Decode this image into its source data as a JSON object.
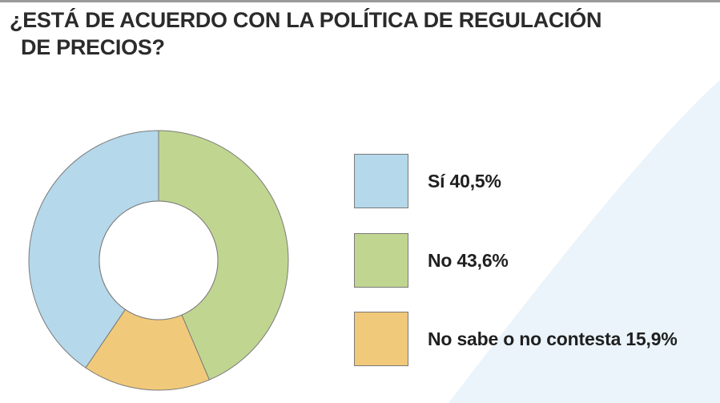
{
  "title_lines": [
    "¿ESTÁ DE ACUERDO CON LA POLÍTICA DE REGULACIÓN",
    "DE PRECIOS?"
  ],
  "colors": {
    "si": "#b5d8ea",
    "no": "#c0d690",
    "ns_nc": "#f0c97a",
    "outline": "#7a7a7a",
    "background_accent": "#eaf4fa"
  },
  "chart_data": {
    "type": "pie",
    "variant": "donut",
    "title": "¿ESTÁ DE ACUERDO CON LA POLÍTICA DE REGULACIÓN DE PRECIOS?",
    "categories": [
      "Sí",
      "No",
      "No sabe o no contesta"
    ],
    "values": [
      40.5,
      43.6,
      15.9
    ],
    "unit": "%",
    "legend_labels": [
      "Sí  40,5%",
      "No 43,6%",
      "No sabe o no contesta 15,9%"
    ],
    "legend_position": "right",
    "slice_colors": [
      "#b5d8ea",
      "#c0d690",
      "#f0c97a"
    ]
  }
}
